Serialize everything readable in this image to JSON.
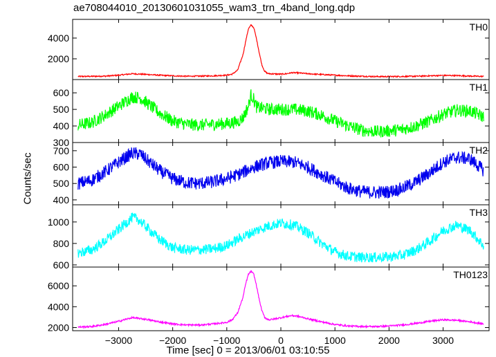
{
  "chart_data": [
    {
      "type": "line",
      "panel_label": "TH0",
      "color": "#ff0000",
      "ylim": [
        0,
        5800
      ],
      "yticks": [
        2000,
        4000
      ],
      "xlim": [
        -3850,
        3850
      ],
      "series": [
        {
          "x": [
            -3750,
            -3500,
            -3250,
            -3000,
            -2750,
            -2500,
            -2250,
            -2000,
            -1750,
            -1500,
            -1250,
            -1000,
            -900,
            -800,
            -700,
            -650,
            -600,
            -550,
            -500,
            -450,
            -400,
            -350,
            -300,
            -250,
            -200,
            -100,
            0,
            100,
            200,
            300,
            500,
            750,
            1000,
            1250,
            1500,
            1750,
            2000,
            2250,
            2500,
            2750,
            3000,
            3250,
            3500,
            3750
          ],
          "y": [
            300,
            310,
            330,
            420,
            560,
            500,
            420,
            360,
            320,
            330,
            360,
            420,
            520,
            900,
            2400,
            3700,
            4900,
            5250,
            5000,
            3900,
            2600,
            1400,
            800,
            600,
            560,
            540,
            520,
            560,
            660,
            650,
            560,
            490,
            420,
            360,
            320,
            290,
            290,
            300,
            320,
            360,
            400,
            380,
            340,
            300
          ],
          "noise": 60
        }
      ]
    },
    {
      "type": "line",
      "panel_label": "TH1",
      "color": "#00ff00",
      "ylim": [
        300,
        680
      ],
      "yticks": [
        300,
        400,
        500,
        600
      ],
      "xlim": [
        -3850,
        3850
      ],
      "series": [
        {
          "x": [
            -3750,
            -3500,
            -3250,
            -3000,
            -2750,
            -2600,
            -2500,
            -2250,
            -2000,
            -1750,
            -1500,
            -1250,
            -1000,
            -800,
            -700,
            -600,
            -550,
            -500,
            -450,
            -400,
            -300,
            -200,
            0,
            250,
            500,
            750,
            1000,
            1250,
            1500,
            1750,
            2000,
            2250,
            2500,
            2750,
            3000,
            3250,
            3500,
            3750
          ],
          "y": [
            405,
            420,
            465,
            520,
            575,
            570,
            545,
            480,
            430,
            410,
            405,
            410,
            415,
            425,
            450,
            520,
            590,
            560,
            515,
            510,
            505,
            500,
            500,
            500,
            490,
            465,
            430,
            400,
            375,
            365,
            370,
            380,
            400,
            430,
            470,
            495,
            490,
            455
          ],
          "noise": 38
        }
      ]
    },
    {
      "type": "line",
      "panel_label": "TH2",
      "color": "#0000ee",
      "ylim": [
        370,
        750
      ],
      "yticks": [
        400,
        500,
        600,
        700
      ],
      "xlim": [
        -3850,
        3850
      ],
      "series": [
        {
          "x": [
            -3750,
            -3500,
            -3250,
            -3000,
            -2750,
            -2600,
            -2500,
            -2250,
            -2000,
            -1750,
            -1500,
            -1250,
            -1000,
            -750,
            -500,
            -250,
            0,
            250,
            500,
            750,
            1000,
            1250,
            1500,
            1750,
            2000,
            2250,
            2500,
            2750,
            3000,
            3250,
            3500,
            3750
          ],
          "y": [
            500,
            520,
            570,
            630,
            685,
            680,
            650,
            580,
            530,
            505,
            500,
            510,
            530,
            560,
            600,
            625,
            635,
            630,
            600,
            555,
            510,
            470,
            450,
            445,
            450,
            470,
            510,
            565,
            630,
            660,
            650,
            580
          ],
          "noise": 40
        }
      ]
    },
    {
      "type": "line",
      "panel_label": "TH3",
      "color": "#00ffff",
      "ylim": [
        580,
        1160
      ],
      "yticks": [
        600,
        800,
        1000
      ],
      "xlim": [
        -3850,
        3850
      ],
      "series": [
        {
          "x": [
            -3750,
            -3500,
            -3250,
            -3000,
            -2750,
            -2650,
            -2500,
            -2250,
            -2000,
            -1750,
            -1500,
            -1250,
            -1000,
            -750,
            -500,
            -250,
            0,
            250,
            500,
            750,
            1000,
            1250,
            1500,
            1750,
            2000,
            2250,
            2500,
            2750,
            3000,
            3250,
            3500,
            3750
          ],
          "y": [
            710,
            740,
            820,
            930,
            1040,
            1030,
            960,
            840,
            760,
            740,
            740,
            750,
            780,
            850,
            910,
            960,
            990,
            970,
            900,
            800,
            720,
            680,
            670,
            670,
            675,
            690,
            740,
            820,
            920,
            970,
            920,
            780
          ],
          "noise": 48
        }
      ]
    },
    {
      "type": "line",
      "panel_label": "TH0123",
      "color": "#ff00ff",
      "ylim": [
        1700,
        7800
      ],
      "yticks": [
        2000,
        4000,
        6000
      ],
      "xticks": [
        -3000,
        -2000,
        -1000,
        0,
        1000,
        2000,
        3000
      ],
      "xlim": [
        -3850,
        3850
      ],
      "series": [
        {
          "x": [
            -3750,
            -3500,
            -3250,
            -3000,
            -2750,
            -2500,
            -2250,
            -2000,
            -1750,
            -1500,
            -1250,
            -1000,
            -900,
            -800,
            -700,
            -650,
            -600,
            -550,
            -500,
            -450,
            -400,
            -350,
            -300,
            -250,
            -200,
            -100,
            0,
            100,
            200,
            300,
            500,
            750,
            1000,
            1250,
            1500,
            1750,
            2000,
            2250,
            2500,
            2750,
            3000,
            3250,
            3500,
            3750
          ],
          "y": [
            2050,
            2100,
            2300,
            2600,
            2950,
            2800,
            2550,
            2350,
            2250,
            2250,
            2350,
            2500,
            2750,
            3400,
            4900,
            6200,
            7100,
            7400,
            7100,
            6000,
            4700,
            3600,
            3000,
            2800,
            2750,
            2850,
            2950,
            3050,
            3150,
            3100,
            2850,
            2550,
            2300,
            2150,
            2100,
            2100,
            2150,
            2250,
            2400,
            2600,
            2750,
            2700,
            2550,
            2350
          ],
          "noise": 80
        }
      ]
    }
  ],
  "title": "ae708044010_20130601031055_wam3_trn_4band_long.qdp",
  "xlabel": "Time [sec] 0 = 2013/06/01 03:10:55",
  "ylabel": "Counts/sec"
}
